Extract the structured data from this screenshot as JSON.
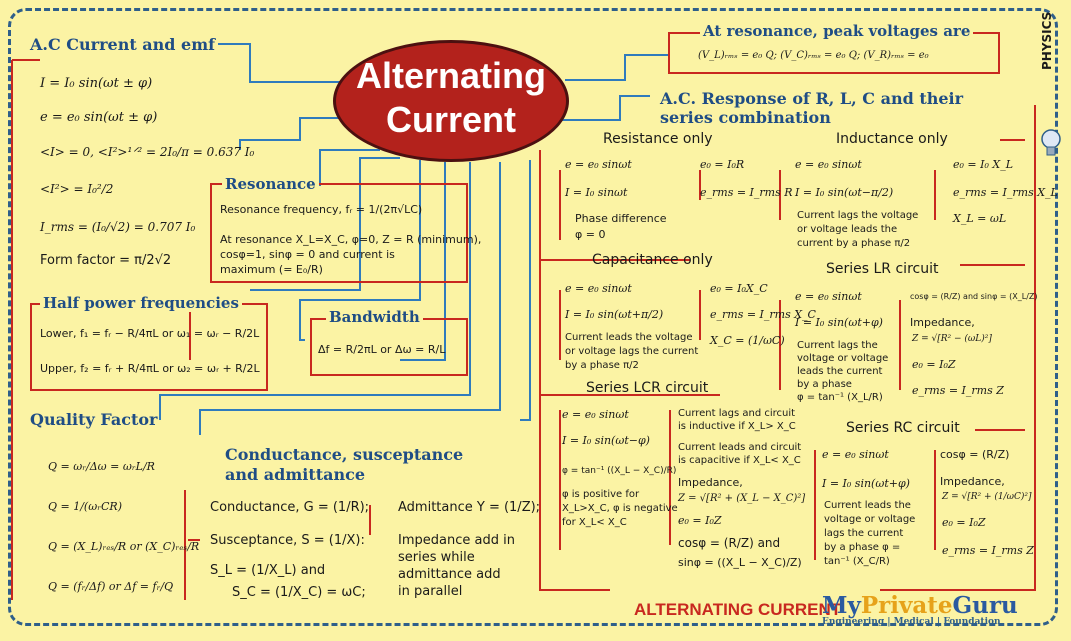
{
  "title": {
    "line1": "Alternating",
    "line2": "Current"
  },
  "side_label": "PHYSICS",
  "footer": {
    "title": "ALTERNATING CURRENT",
    "logo_my": "My",
    "logo_private": "Private",
    "logo_guru": "Guru",
    "tagline": "Engineering | Medical | Foundation"
  },
  "ac_current": {
    "heading": "A.C Current and emf",
    "items": [
      "I = I₀ sin(ωt ± φ)",
      "e = e₀ sin(ωt ± φ)",
      "<I> = 0, <I²>¹ᐟ² = 2I₀/π = 0.637 I₀",
      "<I²> = I₀²/2",
      "I_rms = (I₀/√2) = 0.707 I₀",
      "Form factor = π/2√2"
    ]
  },
  "resonance": {
    "heading": "Resonance",
    "line1": "Resonance frequency, fᵣ = 1/(2π√LC)",
    "line2": "At resonance X_L=X_C, φ=0, Z = R (minimum),",
    "line3": "cosφ=1, sinφ = 0 and current is",
    "line4": "maximum (= E₀/R)"
  },
  "half_power": {
    "heading": "Half power frequencies",
    "lower": "Lower,  f₁ = fᵣ − R/4πL  or  ω₁ = ωᵣ − R/2L",
    "upper": "Upper,  f₂ = fᵣ + R/4πL  or  ω₂ = ωᵣ + R/2L"
  },
  "bandwidth": {
    "heading": "Bandwidth",
    "formula": "Δf = R/2πL  or  Δω = R/L"
  },
  "quality": {
    "heading": "Quality Factor",
    "items": [
      "Q = ωᵣ/Δω = ωᵣL/R",
      "Q = 1/(ωᵣCR)",
      "Q = (X_L)ᵣₑₛ/R  or  (X_C)ᵣₑₛ/R",
      "Q = (fᵣ/Δf)  or  Δf = fᵣ/Q"
    ]
  },
  "conductance": {
    "heading1": "Conductance, susceptance",
    "heading2": "and admittance",
    "cond": "Conductance, G = (1/R);",
    "adm": "Admittance Y = (1/Z);",
    "susc": "Susceptance, S = (1/X):",
    "sl": "S_L = (1/X_L)  and",
    "sc": "S_C = (1/X_C) = ωC;",
    "imp1": "Impedance add in",
    "imp2": "series while",
    "imp3": "admittance add",
    "imp4": "in parallel"
  },
  "peak": {
    "heading": "At resonance, peak voltages are",
    "formula": "(V_L)ᵣₘₛ = e₀ Q;  (V_C)ᵣₘₛ = e₀ Q;  (V_R)ᵣₘₛ = e₀"
  },
  "response": {
    "heading1": "A.C. Response of R, L, C and their",
    "heading2": "series combination"
  },
  "resistance": {
    "heading": "Resistance only",
    "e": "e = e₀ sinωt",
    "e0": "e₀ = I₀R",
    "i": "I = I₀ sinωt",
    "erms": "e_rms = I_rms R",
    "phase1": "Phase difference",
    "phase2": "φ = 0"
  },
  "inductance": {
    "heading": "Inductance only",
    "e": "e = e₀ sinωt",
    "e0": "e₀ = I₀ X_L",
    "i": "I = I₀ sin(ωt−π/2)",
    "erms": "e_rms = I_rms X_L",
    "lag1": "Current lags the voltage",
    "lag2": "or voltage leads the",
    "lag3": "current by a phase π/2",
    "xl": "X_L = ωL"
  },
  "capacitance": {
    "heading": "Capacitance only",
    "e": "e = e₀ sinωt",
    "e0": "e₀ = I₀X_C",
    "i": "I = I₀ sin(ωt+π/2)",
    "erms": "e_rms = I_rms X_C",
    "lead1": "Current leads the voltage",
    "lead2": "or voltage lags the current",
    "lead3": "by a phase π/2",
    "xc": "X_C = (1/ωC)"
  },
  "lr": {
    "heading": "Series LR circuit",
    "e": "e = e₀ sinωt",
    "cos": "cosφ = (R/Z) and sinφ = (X_L/Z)",
    "i": "I = I₀ sin(ωt+φ)",
    "imp": "Impedance,",
    "z": "Z = √[R² − (ωL)²]",
    "lag1": "Current lags the",
    "lag2": "voltage or voltage",
    "lag3": "leads the current",
    "lag4": "by a phase",
    "lag5": "φ = tan⁻¹ (X_L/R)",
    "e0": "e₀ = I₀Z",
    "erms": "e_rms = I_rms Z"
  },
  "lcr": {
    "heading": "Series LCR circuit",
    "e": "e = e₀ sinωt",
    "i": "I = I₀ sin(ωt−φ)",
    "phi": "φ = tan⁻¹ ((X_L − X_C)/R)",
    "pos1": "φ is positive for",
    "pos2": "X_L>X_C, φ is negative",
    "pos3": "for X_L< X_C",
    "ind1": "Current lags and circuit",
    "ind2": "is inductive if X_L> X_C",
    "cap1": "Current leads and circuit",
    "cap2": "is capacitive if X_L< X_C",
    "imp": "Impedance,",
    "z": "Z = √[R² + (X_L − X_C)²]",
    "e0": "e₀ = I₀Z",
    "cos": "cosφ = (R/Z) and",
    "sin": "sinφ = ((X_L − X_C)/Z)"
  },
  "rc": {
    "heading": "Series RC circuit",
    "e": "e = e₀ sinωt",
    "cos": "cosφ = (R/Z)",
    "i": "I = I₀ sin(ωt+φ)",
    "imp": "Impedance,",
    "z": "Z = √[R² + (1/ωC)²]",
    "lead1": "Current leads the",
    "lead2": "voltage or voltage",
    "lead3": "lags the current",
    "lead4": "by a phase φ =",
    "lead5": "tan⁻¹ (X_C/R)",
    "e0": "e₀ = I₀Z",
    "erms": "e_rms = I_rms Z"
  },
  "colors": {
    "background": "#fbf3a4",
    "heading": "#1f4d85",
    "accent": "#c8281f",
    "connector": "#2f7bbd"
  }
}
